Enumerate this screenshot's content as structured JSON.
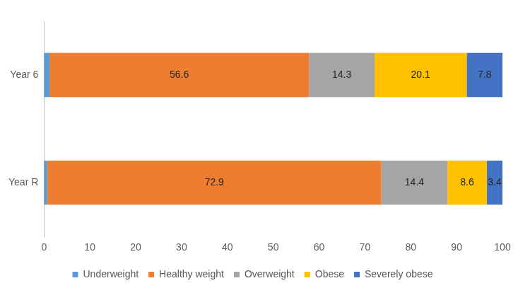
{
  "chart_data": {
    "type": "bar",
    "orientation": "horizontal",
    "stacked": true,
    "categories": [
      "Year 6",
      "Year R"
    ],
    "series": [
      {
        "name": "Underweight",
        "color": "#5b9bd5",
        "values": [
          1.2,
          0.7
        ],
        "data_labels": false
      },
      {
        "name": "Healthy weight",
        "color": "#ed7d31",
        "values": [
          56.6,
          72.9
        ]
      },
      {
        "name": "Overweight",
        "color": "#a5a5a5",
        "values": [
          14.3,
          14.4
        ]
      },
      {
        "name": "Obese",
        "color": "#ffc000",
        "values": [
          20.1,
          8.6
        ]
      },
      {
        "name": "Severely obese",
        "color": "#4472c4",
        "values": [
          7.8,
          3.4
        ]
      }
    ],
    "xlim": [
      0,
      100
    ],
    "xticks": [
      0,
      10,
      20,
      30,
      40,
      50,
      60,
      70,
      80,
      90,
      100
    ],
    "grid": false,
    "legend": "bottom",
    "data_labels": true
  }
}
